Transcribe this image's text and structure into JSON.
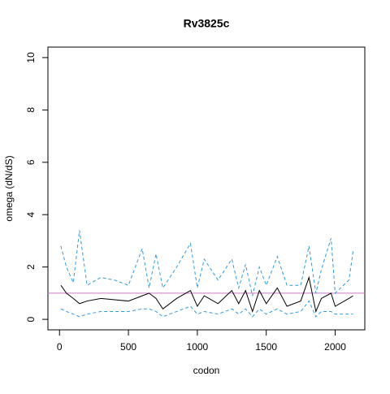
{
  "chart_data": {
    "type": "line",
    "title": "Rv3825c",
    "x_label": "codon",
    "y_label": "omega (dN/dS)",
    "x": [
      10,
      50,
      100,
      145,
      200,
      300,
      400,
      500,
      600,
      650,
      700,
      750,
      850,
      950,
      1000,
      1050,
      1150,
      1250,
      1300,
      1350,
      1400,
      1450,
      1500,
      1580,
      1650,
      1750,
      1810,
      1860,
      1900,
      1970,
      2000,
      2100,
      2130
    ],
    "series": [
      {
        "color": "#000000",
        "linestyle": "solid",
        "values": [
          1.3,
          1.0,
          0.8,
          0.6,
          0.7,
          0.8,
          0.75,
          0.7,
          0.9,
          1.0,
          0.8,
          0.4,
          0.8,
          1.1,
          0.5,
          0.9,
          0.6,
          1.1,
          0.6,
          1.1,
          0.3,
          1.1,
          0.6,
          1.2,
          0.5,
          0.7,
          1.6,
          0.3,
          0.8,
          1.0,
          0.5,
          0.8,
          0.9
        ]
      },
      {
        "color": "#3399dd",
        "linestyle": "dashed",
        "values": [
          2.8,
          2.0,
          1.4,
          3.4,
          1.3,
          1.6,
          1.5,
          1.3,
          2.7,
          1.2,
          2.5,
          1.2,
          2.0,
          2.9,
          1.2,
          2.3,
          1.5,
          2.3,
          1.2,
          2.1,
          0.9,
          2.0,
          1.3,
          2.4,
          1.3,
          1.3,
          2.8,
          1.0,
          1.9,
          3.1,
          1.0,
          1.5,
          2.6
        ]
      },
      {
        "color": "#3399dd",
        "linestyle": "dashed",
        "values": [
          0.4,
          0.3,
          0.2,
          0.1,
          0.2,
          0.3,
          0.3,
          0.3,
          0.4,
          0.4,
          0.3,
          0.1,
          0.3,
          0.5,
          0.2,
          0.3,
          0.2,
          0.4,
          0.2,
          0.4,
          0.1,
          0.4,
          0.2,
          0.4,
          0.2,
          0.3,
          0.7,
          0.1,
          0.3,
          0.3,
          0.2,
          0.2,
          0.2
        ]
      }
    ],
    "hline": {
      "value": 1,
      "color": "#c77cc0"
    },
    "xlim": [
      -84,
      2215
    ],
    "xticks": [
      0,
      500,
      1000,
      1500,
      2000
    ],
    "ylim": [
      -0.4,
      10.4
    ],
    "yticks": [
      0,
      2,
      4,
      6,
      8,
      10
    ]
  }
}
